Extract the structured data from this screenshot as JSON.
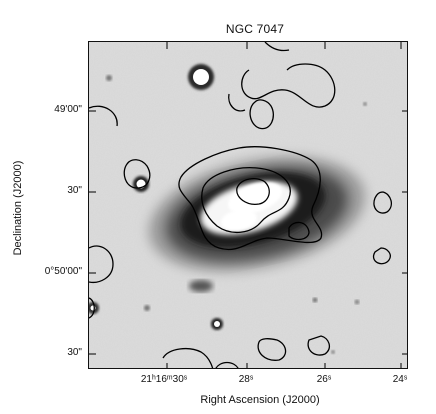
{
  "title": "NGC 7047",
  "axes": {
    "xlabel": "Right Ascension (J2000)",
    "ylabel": "Declination (J2000)",
    "xticks": [
      "21ʰ16ᵐ30ˢ",
      "28ˢ",
      "26ˢ",
      "24ˢ"
    ],
    "yticks": [
      "49'00\"",
      "30\"",
      "0°50'00\"",
      "30\""
    ]
  }
}
